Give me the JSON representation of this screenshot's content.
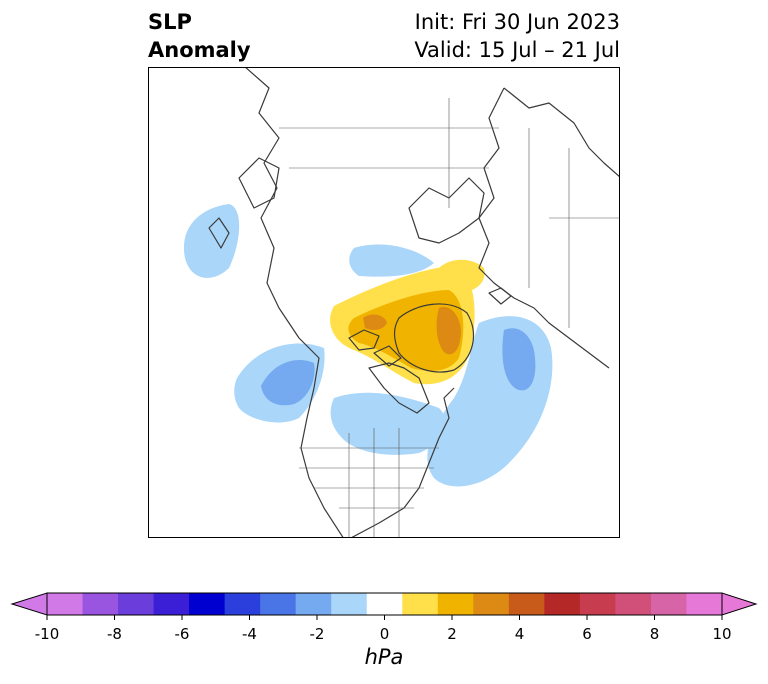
{
  "header": {
    "title_left": "SLP\nAnomaly",
    "title_right": "Init: Fri 30 Jun 2023\nValid: 15 Jul – 21 Jul"
  },
  "colorbar": {
    "unit": "hPa",
    "tick_labels": [
      "-10",
      "-8",
      "-6",
      "-4",
      "-2",
      "0",
      "2",
      "4",
      "6",
      "8",
      "10"
    ],
    "levels": [
      -10,
      -9,
      -8,
      -7,
      -6,
      -5,
      -4,
      -3,
      -2,
      -1,
      1,
      2,
      3,
      4,
      5,
      6,
      7,
      8,
      9,
      10
    ],
    "colors": [
      "#d279e8",
      "#9a55e0",
      "#6b3ddb",
      "#3a1fd6",
      "#0000d0",
      "#2a3fdc",
      "#4a75e6",
      "#75aaf0",
      "#aad6fa",
      "#ffffff",
      "#ffe04a",
      "#f0b400",
      "#dc8a14",
      "#c85a1a",
      "#b42828",
      "#c83c50",
      "#d0507a",
      "#d864a8",
      "#e678d8"
    ]
  },
  "map": {
    "projection": "north-polar-stereographic",
    "field": "SLP anomaly",
    "colors": {
      "neg_light": "#aad6fa",
      "neg_mid": "#75aaf0",
      "pos_light": "#ffe04a",
      "pos_mid": "#f0b400",
      "pos_strong": "#dc8a14",
      "coast": "#3a3a3a"
    }
  }
}
